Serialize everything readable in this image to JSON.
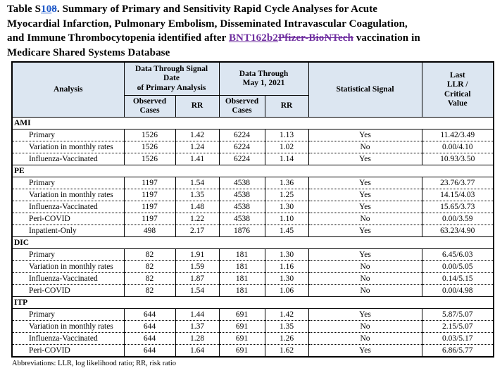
{
  "title": {
    "segments": [
      {
        "text": "Table S",
        "style": "normal"
      },
      {
        "text": "10",
        "style": "ins-blue"
      },
      {
        "text": "8",
        "style": "del-blue"
      },
      {
        "text": ". Summary of Primary and Sensitivity Rapid Cycle Analyses for Acute",
        "style": "normal"
      },
      {
        "text": "",
        "style": "br"
      },
      {
        "text": "Myocardial Infarction, Pulmonary Embolism, Disseminated Intravascular Coagulation,",
        "style": "normal"
      },
      {
        "text": "",
        "style": "br"
      },
      {
        "text": "and Immune Thrombocytopenia identified after ",
        "style": "normal"
      },
      {
        "text": "BNT162b2",
        "style": "ins-purple"
      },
      {
        "text": "Pfizer-BioNTech",
        "style": "del-purple"
      },
      {
        "text": " vaccination in",
        "style": "normal"
      },
      {
        "text": "",
        "style": "br"
      },
      {
        "text": "Medicare Shared Systems Database",
        "style": "normal"
      }
    ]
  },
  "colors": {
    "header_fill": "#dce6f1",
    "insertion_blue": "#1d58c8",
    "revision_purple": "#7030a0",
    "border": "#000000",
    "background": "#ffffff"
  },
  "table": {
    "header": {
      "analysis": "Analysis",
      "group_primary": "Data Through Signal\nDate\nof Primary Analysis",
      "group_may2021": "Data Through\nMay 1, 2021",
      "observed_cases": "Observed\nCases",
      "rr": "RR",
      "statistical_signal": "Statistical Signal",
      "last_llr": "Last\nLLR /\nCritical\nValue"
    },
    "sections": [
      {
        "label": "AMI",
        "rows": [
          {
            "analysis": "Primary",
            "cells": [
              "1526",
              "1.42",
              "6224",
              "1.13",
              "Yes",
              "11.42/3.49"
            ]
          },
          {
            "analysis": "Variation in monthly rates",
            "cells": [
              "1526",
              "1.24",
              "6224",
              "1.02",
              "No",
              "0.00/4.10"
            ]
          },
          {
            "analysis": "Influenza-Vaccinated",
            "cells": [
              "1526",
              "1.41",
              "6224",
              "1.14",
              "Yes",
              "10.93/3.50"
            ]
          }
        ]
      },
      {
        "label": "PE",
        "rows": [
          {
            "analysis": "Primary",
            "cells": [
              "1197",
              "1.54",
              "4538",
              "1.36",
              "Yes",
              "23.76/3.77"
            ]
          },
          {
            "analysis": "Variation in monthly rates",
            "cells": [
              "1197",
              "1.35",
              "4538",
              "1.25",
              "Yes",
              "14.15/4.03"
            ]
          },
          {
            "analysis": "Influenza-Vaccinated",
            "cells": [
              "1197",
              "1.48",
              "4538",
              "1.30",
              "Yes",
              "15.65/3.73"
            ]
          },
          {
            "analysis": "Peri-COVID",
            "cells": [
              "1197",
              "1.22",
              "4538",
              "1.10",
              "No",
              "0.00/3.59"
            ]
          },
          {
            "analysis": "Inpatient-Only",
            "cells": [
              "498",
              "2.17",
              "1876",
              "1.45",
              "Yes",
              "63.23/4.90"
            ]
          }
        ]
      },
      {
        "label": "DIC",
        "rows": [
          {
            "analysis": "Primary",
            "cells": [
              "82",
              "1.91",
              "181",
              "1.30",
              "Yes",
              "6.45/6.03"
            ]
          },
          {
            "analysis": "Variation in monthly rates",
            "cells": [
              "82",
              "1.59",
              "181",
              "1.16",
              "No",
              "0.00/5.05"
            ]
          },
          {
            "analysis": "Influenza-Vaccinated",
            "cells": [
              "82",
              "1.87",
              "181",
              "1.30",
              "No",
              "0.14/5.15"
            ]
          },
          {
            "analysis": "Peri-COVID",
            "cells": [
              "82",
              "1.54",
              "181",
              "1.06",
              "No",
              "0.00/4.98"
            ]
          }
        ]
      },
      {
        "label": "ITP",
        "rows": [
          {
            "analysis": "Primary",
            "cells": [
              "644",
              "1.44",
              "691",
              "1.42",
              "Yes",
              "5.87/5.07"
            ]
          },
          {
            "analysis": "Variation in monthly rates",
            "cells": [
              "644",
              "1.37",
              "691",
              "1.35",
              "No",
              "2.15/5.07"
            ]
          },
          {
            "analysis": "Influenza-Vaccinated",
            "cells": [
              "644",
              "1.28",
              "691",
              "1.26",
              "No",
              "0.03/5.17"
            ]
          },
          {
            "analysis": "Peri-COVID",
            "cells": [
              "644",
              "1.64",
              "691",
              "1.62",
              "Yes",
              "6.86/5.77"
            ]
          }
        ]
      }
    ]
  },
  "footnote": "Abbreviations: LLR, log likelihood ratio; RR, risk ratio"
}
